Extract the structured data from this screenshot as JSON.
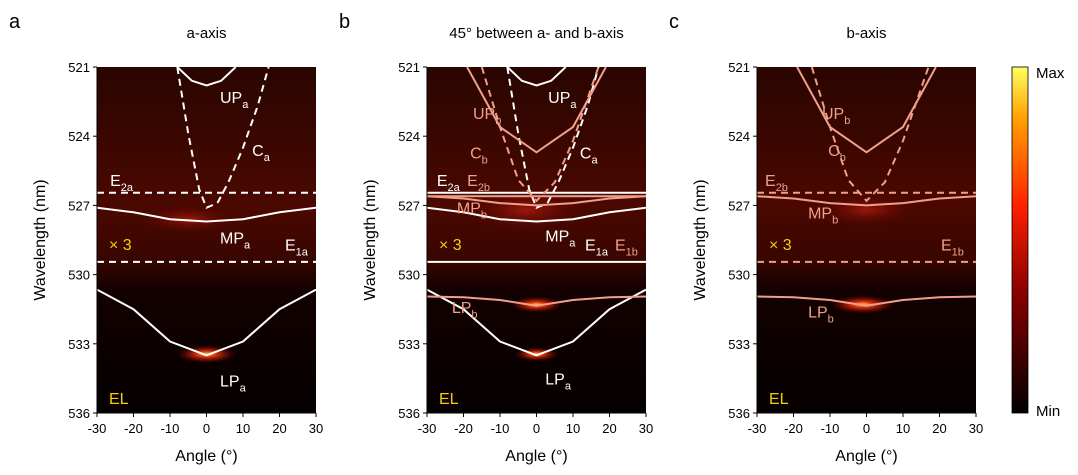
{
  "chart_data": [
    {
      "type": "line",
      "panel_label": "a",
      "title": "a-axis",
      "xlabel": "Angle (°)",
      "ylabel": "Wavelength (nm)",
      "xlim": [
        -30,
        30
      ],
      "xticks": [
        -30,
        -20,
        -10,
        0,
        10,
        20,
        30
      ],
      "ylim": [
        521,
        536
      ],
      "yticks": [
        521,
        524,
        527,
        530,
        533,
        536
      ],
      "y_inverted": true,
      "multiplier_label": "× 3",
      "mode_label": "EL",
      "series": [
        {
          "color": "#ffffff",
          "dash": false,
          "x": [
            -8,
            -4,
            0,
            4,
            8
          ],
          "values": [
            521,
            521.6,
            521.8,
            521.6,
            521
          ]
        },
        {
          "color": "#ffffff",
          "dash": true,
          "x": [
            -8,
            -5,
            -2,
            0,
            3,
            6,
            10,
            14,
            17
          ],
          "values": [
            521,
            523.9,
            526.3,
            527.1,
            526.9,
            526.0,
            524.5,
            522.7,
            521
          ]
        },
        {
          "color": "#ffffff",
          "dash": true,
          "x": [
            -30,
            30
          ],
          "values": [
            526.45,
            526.45
          ]
        },
        {
          "color": "#ffffff",
          "dash": false,
          "x": [
            -30,
            -20,
            -10,
            0,
            10,
            20,
            30
          ],
          "values": [
            527.1,
            527.3,
            527.6,
            527.7,
            527.6,
            527.3,
            527.1
          ]
        },
        {
          "color": "#ffffff",
          "dash": true,
          "x": [
            -30,
            30
          ],
          "values": [
            529.45,
            529.45
          ]
        },
        {
          "color": "#ffffff",
          "dash": false,
          "x": [
            -30,
            -20,
            -10,
            0,
            10,
            20,
            30
          ],
          "values": [
            530.65,
            531.5,
            532.9,
            533.5,
            532.9,
            531.5,
            530.65
          ]
        }
      ],
      "labels": [
        {
          "text": "UP",
          "sub": "a",
          "color": "#ffffff"
        },
        {
          "text": "C",
          "sub": "a",
          "color": "#ffffff"
        },
        {
          "text": "E",
          "sub": "2a",
          "color": "#ffffff"
        },
        {
          "text": "MP",
          "sub": "a",
          "color": "#ffffff"
        },
        {
          "text": "E",
          "sub": "1a",
          "color": "#ffffff"
        },
        {
          "text": "LP",
          "sub": "a",
          "color": "#ffffff"
        }
      ]
    },
    {
      "type": "line",
      "panel_label": "b",
      "title": "45° between a- and b-axis",
      "xlabel": "Angle (°)",
      "ylabel": "Wavelength (nm)",
      "xlim": [
        -30,
        30
      ],
      "xticks": [
        -30,
        -20,
        -10,
        0,
        10,
        20,
        30
      ],
      "ylim": [
        521,
        536
      ],
      "yticks": [
        521,
        524,
        527,
        530,
        533,
        536
      ],
      "y_inverted": true,
      "multiplier_label": "× 3",
      "mode_label": "EL",
      "series": [
        {
          "color": "#ffffff",
          "dash": false,
          "x": [
            -8,
            -4,
            0,
            4,
            8
          ],
          "values": [
            521,
            521.6,
            521.8,
            521.6,
            521
          ]
        },
        {
          "color": "#ffffff",
          "dash": true,
          "x": [
            -8,
            -5,
            -2,
            0,
            3,
            6,
            10,
            14,
            17
          ],
          "values": [
            521,
            523.9,
            526.3,
            527.1,
            526.9,
            526.0,
            524.5,
            522.7,
            521
          ]
        },
        {
          "color": "#ffffff",
          "dash": false,
          "x": [
            -30,
            30
          ],
          "values": [
            526.45,
            526.45
          ]
        },
        {
          "color": "#ffffff",
          "dash": false,
          "x": [
            -30,
            -20,
            -10,
            0,
            10,
            20,
            30
          ],
          "values": [
            527.1,
            527.3,
            527.6,
            527.7,
            527.6,
            527.3,
            527.1
          ]
        },
        {
          "color": "#ffffff",
          "dash": false,
          "x": [
            -30,
            30
          ],
          "values": [
            529.45,
            529.45
          ]
        },
        {
          "color": "#ffffff",
          "dash": false,
          "x": [
            -30,
            -20,
            -10,
            0,
            10,
            20,
            30
          ],
          "values": [
            530.65,
            531.5,
            532.9,
            533.5,
            532.9,
            531.5,
            530.65
          ]
        },
        {
          "color": "#f0a08a",
          "dash": false,
          "x": [
            -19,
            -10,
            0,
            10,
            19
          ],
          "values": [
            521,
            523.6,
            524.7,
            523.6,
            521
          ]
        },
        {
          "color": "#f0a08a",
          "dash": true,
          "x": [
            -15,
            -10,
            -5,
            0,
            5,
            10,
            17
          ],
          "values": [
            521,
            523.6,
            525.9,
            526.8,
            526.0,
            524.2,
            521
          ]
        },
        {
          "color": "#f0a08a",
          "dash": false,
          "x": [
            -30,
            30
          ],
          "values": [
            526.6,
            526.6
          ]
        },
        {
          "color": "#f0a08a",
          "dash": false,
          "x": [
            -30,
            -20,
            -10,
            0,
            10,
            20,
            30
          ],
          "values": [
            526.6,
            526.7,
            526.9,
            527.0,
            526.9,
            526.7,
            526.6
          ]
        },
        {
          "color": "#f0a08a",
          "dash": false,
          "x": [
            -30,
            -20,
            -10,
            0,
            10,
            20,
            30
          ],
          "values": [
            530.95,
            530.98,
            531.1,
            531.35,
            531.1,
            530.98,
            530.95
          ]
        }
      ],
      "labels": [
        {
          "text": "UP",
          "sub": "a",
          "color": "#ffffff"
        },
        {
          "text": "UP",
          "sub": "b",
          "color": "#f0a08a"
        },
        {
          "text": "C",
          "sub": "b",
          "color": "#f0a08a"
        },
        {
          "text": "C",
          "sub": "a",
          "color": "#ffffff"
        },
        {
          "text": "E",
          "sub": "2a",
          "color": "#ffffff"
        },
        {
          "text": "E",
          "sub": "2b",
          "color": "#f0a08a"
        },
        {
          "text": "MP",
          "sub": "b",
          "color": "#f0a08a"
        },
        {
          "text": "MP",
          "sub": "a",
          "color": "#ffffff"
        },
        {
          "text": "E",
          "sub": "1a",
          "color": "#ffffff"
        },
        {
          "text": "E",
          "sub": "1b",
          "color": "#f0a08a"
        },
        {
          "text": "LP",
          "sub": "b",
          "color": "#f0a08a"
        },
        {
          "text": "LP",
          "sub": "a",
          "color": "#ffffff"
        }
      ]
    },
    {
      "type": "line",
      "panel_label": "c",
      "title": "b-axis",
      "xlabel": "Angle (°)",
      "ylabel": "Wavelength (nm)",
      "xlim": [
        -30,
        30
      ],
      "xticks": [
        -30,
        -20,
        -10,
        0,
        10,
        20,
        30
      ],
      "ylim": [
        521,
        536
      ],
      "yticks": [
        521,
        524,
        527,
        530,
        533,
        536
      ],
      "y_inverted": true,
      "multiplier_label": "× 3",
      "mode_label": "EL",
      "series": [
        {
          "color": "#f0a08a",
          "dash": false,
          "x": [
            -19,
            -10,
            0,
            10,
            19
          ],
          "values": [
            521,
            523.6,
            524.7,
            523.6,
            521
          ]
        },
        {
          "color": "#f0a08a",
          "dash": true,
          "x": [
            -15,
            -10,
            -5,
            0,
            5,
            10,
            17
          ],
          "values": [
            521,
            523.6,
            525.9,
            526.8,
            526.0,
            524.2,
            521
          ]
        },
        {
          "color": "#f0a08a",
          "dash": true,
          "x": [
            -30,
            30
          ],
          "values": [
            526.45,
            526.45
          ]
        },
        {
          "color": "#f0a08a",
          "dash": false,
          "x": [
            -30,
            -20,
            -10,
            0,
            10,
            20,
            30
          ],
          "values": [
            526.6,
            526.7,
            526.9,
            527.0,
            526.9,
            526.7,
            526.6
          ]
        },
        {
          "color": "#f0a08a",
          "dash": true,
          "x": [
            -30,
            30
          ],
          "values": [
            529.45,
            529.45
          ]
        },
        {
          "color": "#f0a08a",
          "dash": false,
          "x": [
            -30,
            -20,
            -10,
            0,
            10,
            20,
            30
          ],
          "values": [
            530.95,
            530.98,
            531.1,
            531.35,
            531.1,
            530.98,
            530.95
          ]
        }
      ],
      "labels": [
        {
          "text": "UP",
          "sub": "b",
          "color": "#f0a08a"
        },
        {
          "text": "C",
          "sub": "b",
          "color": "#f0a08a"
        },
        {
          "text": "E",
          "sub": "2b",
          "color": "#f0a08a"
        },
        {
          "text": "MP",
          "sub": "b",
          "color": "#f0a08a"
        },
        {
          "text": "E",
          "sub": "1b",
          "color": "#f0a08a"
        },
        {
          "text": "LP",
          "sub": "b",
          "color": "#f0a08a"
        }
      ]
    }
  ],
  "colorbar": {
    "max_label": "Max",
    "min_label": "Min"
  }
}
